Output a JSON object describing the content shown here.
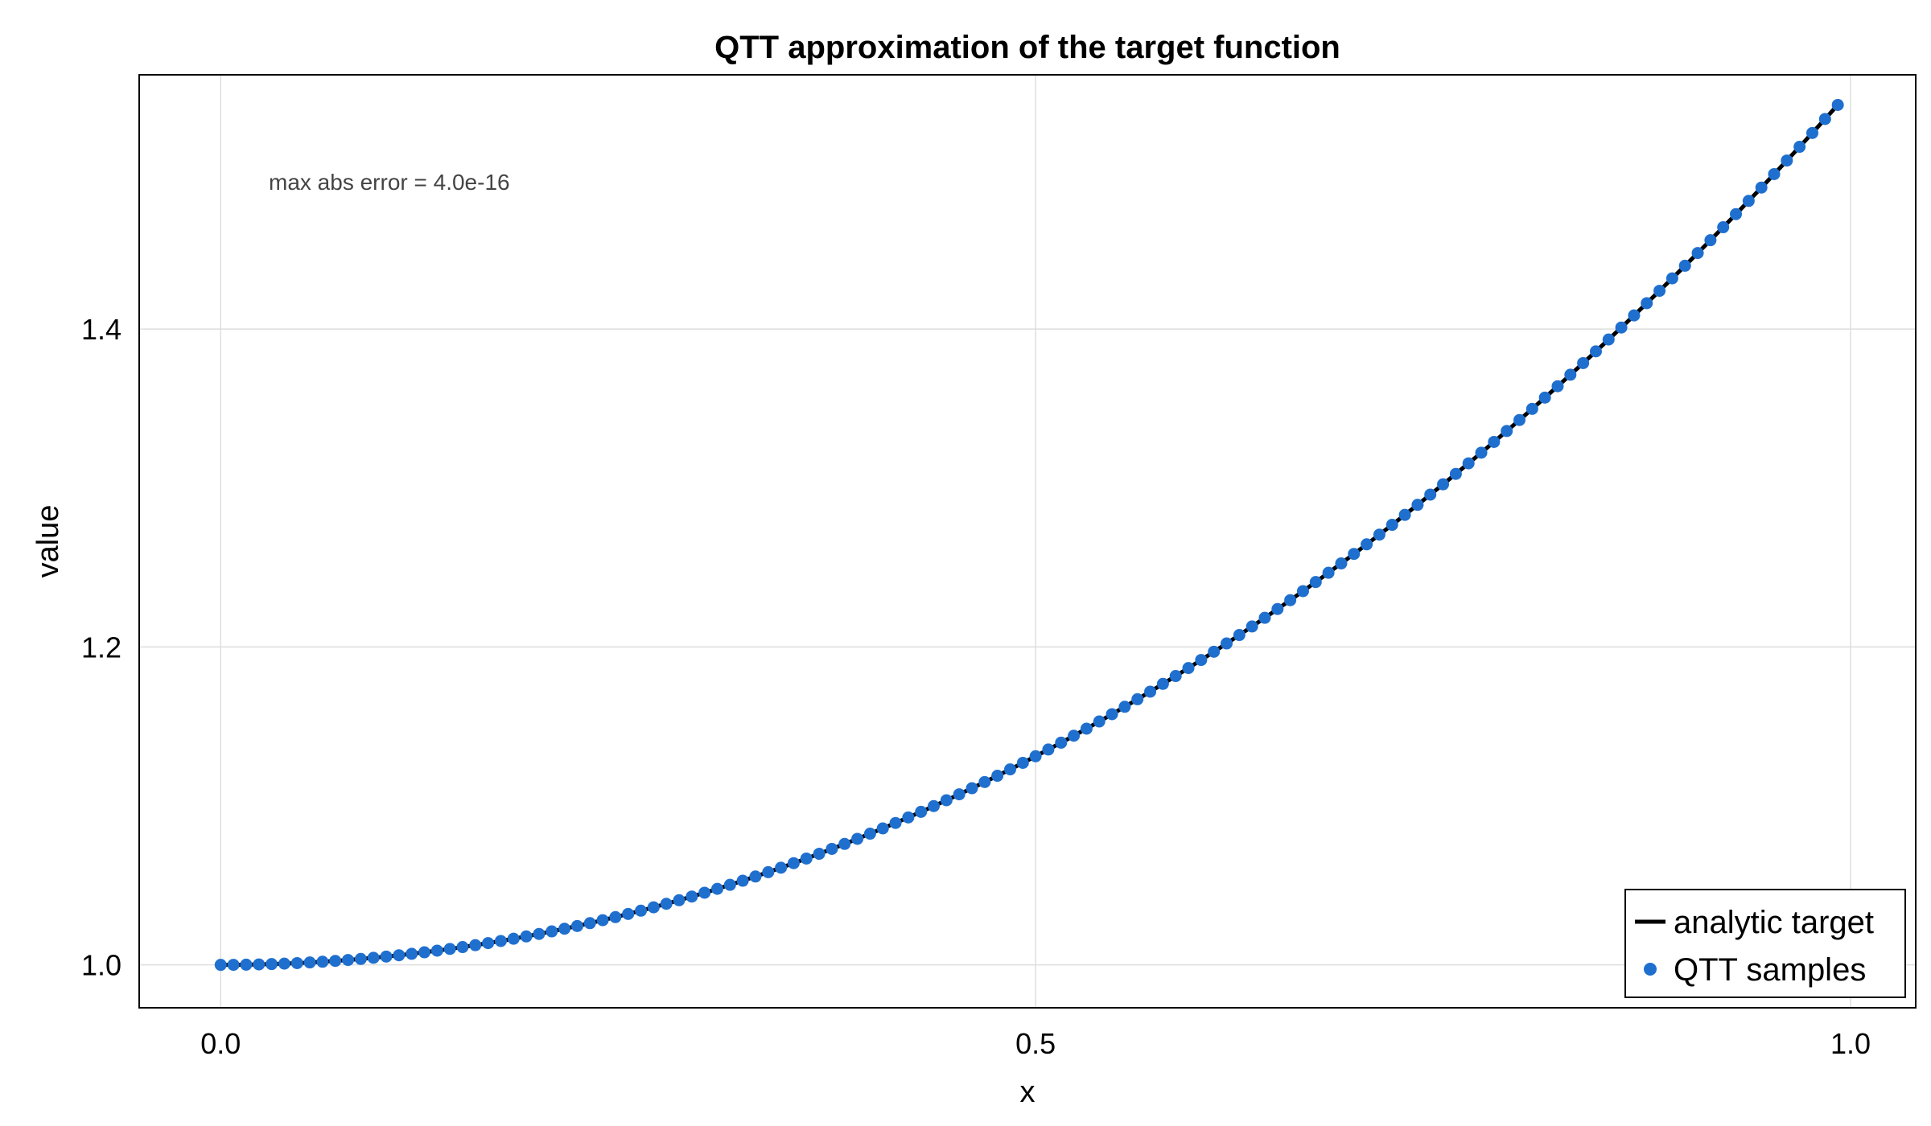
{
  "chart_data": {
    "type": "line",
    "title": "QTT approximation of the target function",
    "xlabel": "x",
    "ylabel": "value",
    "xlim": [
      -0.05,
      1.04
    ],
    "ylim": [
      0.973,
      1.56
    ],
    "x_ticks": [
      {
        "value": 0.0,
        "label": "0.0"
      },
      {
        "value": 0.5,
        "label": "0.5"
      },
      {
        "value": 1.0,
        "label": "1.0"
      }
    ],
    "y_ticks": [
      {
        "value": 1.0,
        "label": "1.0"
      },
      {
        "value": 1.2,
        "label": "1.2"
      },
      {
        "value": 1.4,
        "label": "1.4"
      }
    ],
    "grid": true,
    "legend_position": "bottom-right",
    "annotation": "max abs error = 4.0e-16",
    "series": [
      {
        "name": "analytic target",
        "kind": "line",
        "color": "#000000",
        "x_start": 0,
        "x_end": 0.9921875,
        "n": 128,
        "formula": "1 + 0.5 x^2 + 0.05 x^3"
      },
      {
        "name": "QTT samples",
        "kind": "scatter",
        "color": "#1f6fcf",
        "x_start": 0,
        "x_end": 0.9921875,
        "n": 128,
        "formula": "1 + 0.5 x^2 + 0.05 x^3"
      }
    ]
  }
}
